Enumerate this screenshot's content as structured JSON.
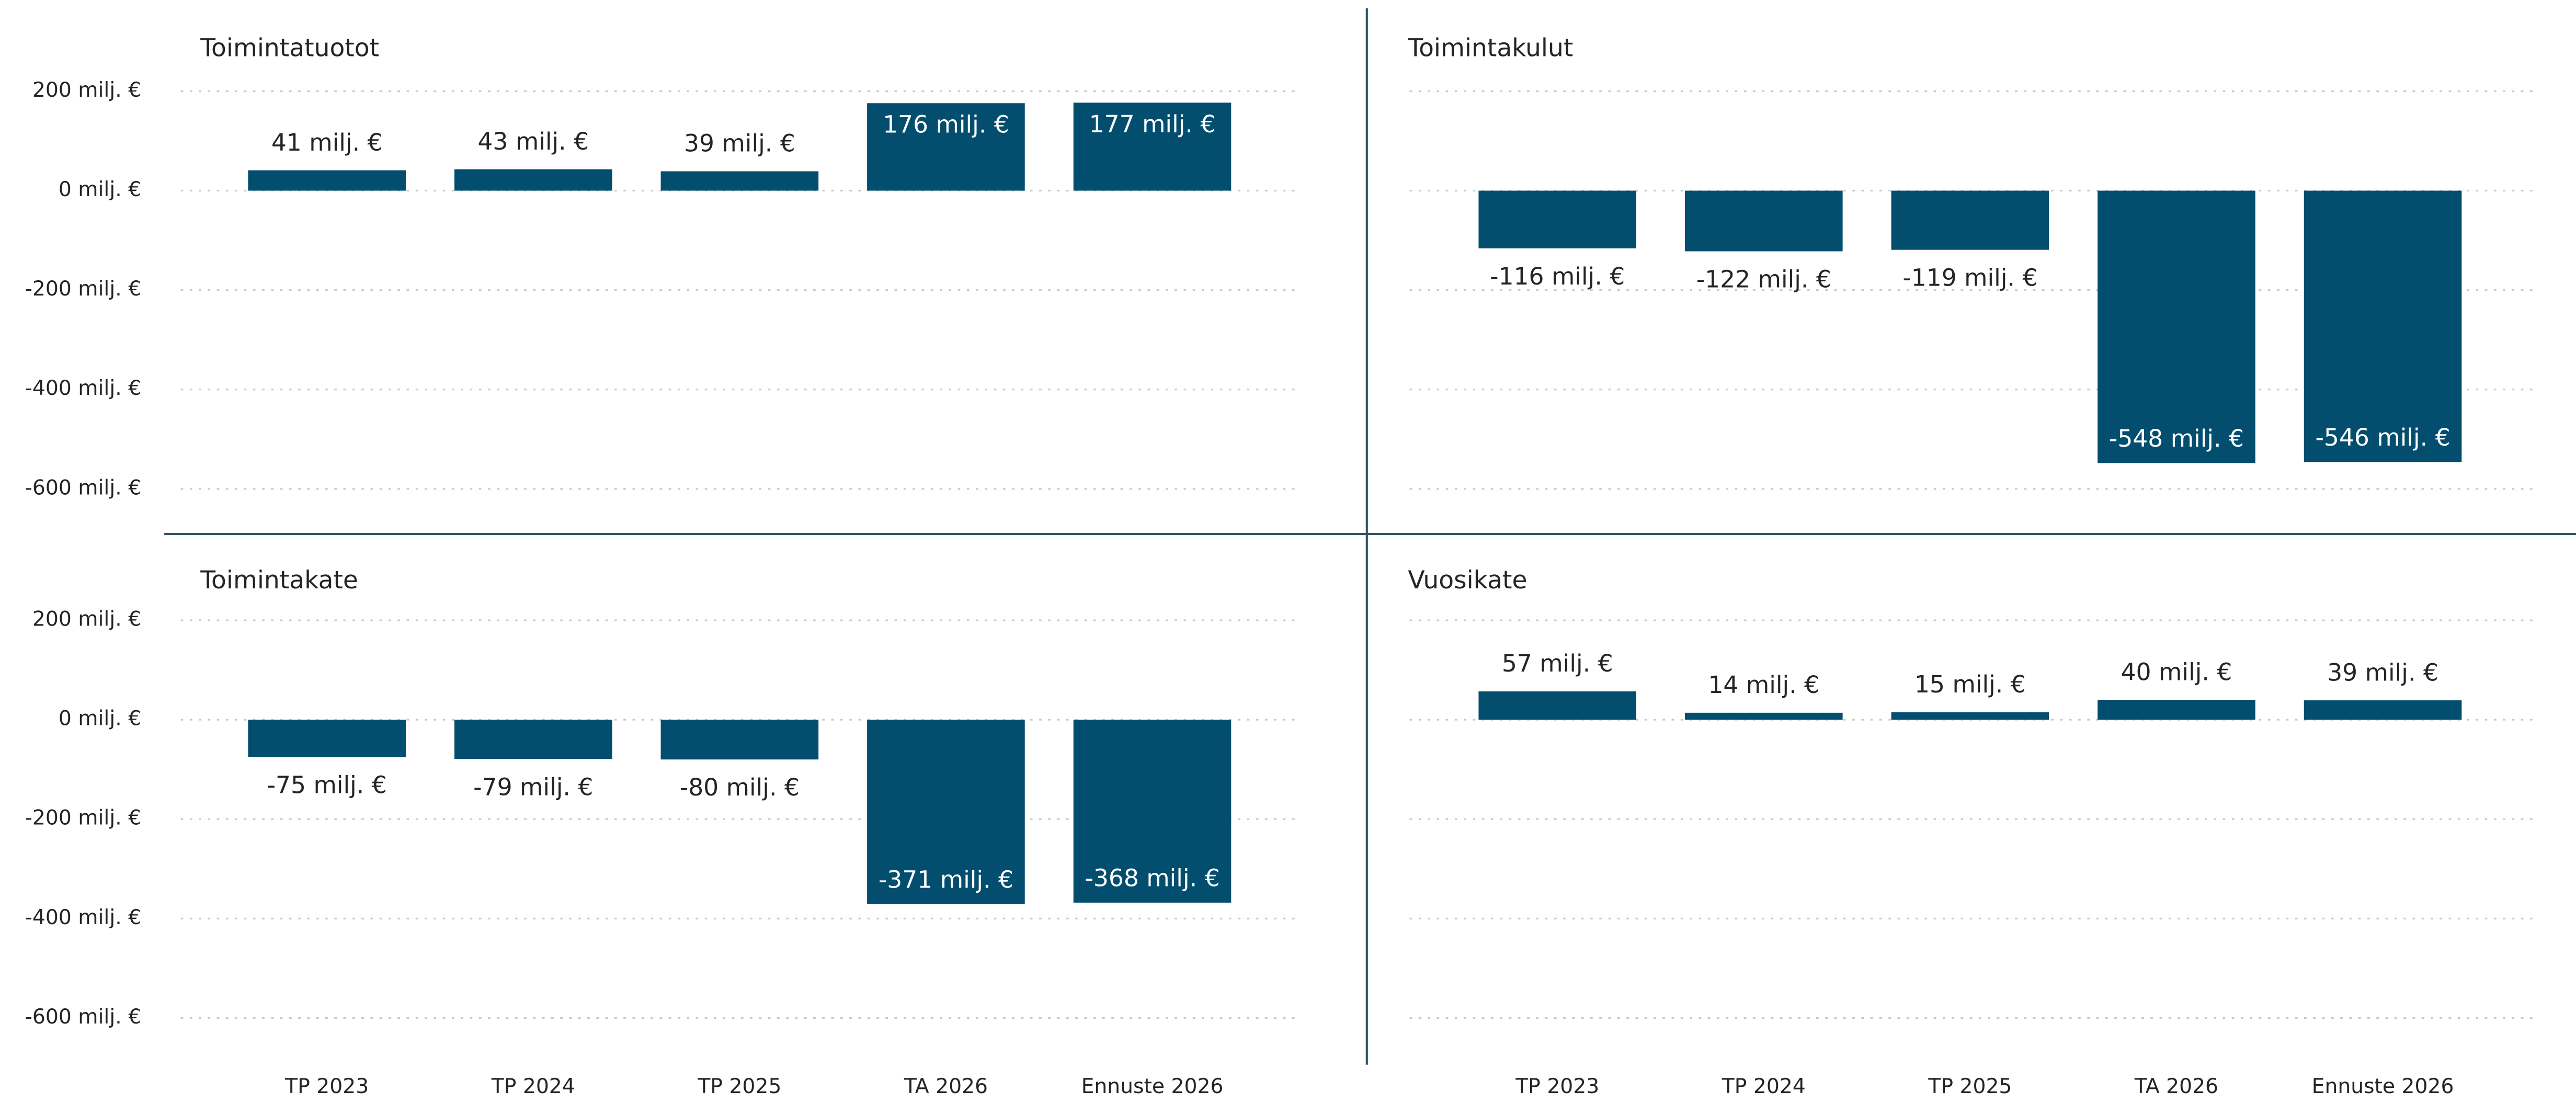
{
  "chart_data": [
    {
      "type": "bar",
      "title": "Toimintatuotot",
      "color": "#034e6e",
      "values": [
        41,
        43,
        39,
        176,
        177
      ],
      "value_labels": [
        "41 milj. €",
        "43 milj. €",
        "39 milj. €",
        "176 milj. €",
        "177 milj. €"
      ],
      "ylim": [
        -660,
        250
      ],
      "yticks": [
        {
          "value": 200,
          "label": "200 milj. €"
        },
        {
          "value": 0,
          "label": "0 milj. €"
        },
        {
          "value": -200,
          "label": "-200 milj. €"
        },
        {
          "value": -400,
          "label": "-400 milj. €"
        },
        {
          "value": -600,
          "label": "-600 milj. €"
        }
      ],
      "grid": true
    },
    {
      "type": "bar",
      "title": "Toimintakulut",
      "color": "#034e6e",
      "values": [
        -116,
        -122,
        -119,
        -548,
        -546
      ],
      "value_labels": [
        "-116 milj. €",
        "-122 milj. €",
        "-119 milj. €",
        "-548 milj. €",
        "-546 milj. €"
      ],
      "ylim": [
        -660,
        250
      ],
      "yticks": [
        200,
        0,
        -200,
        -400,
        -600
      ],
      "grid": true
    },
    {
      "type": "bar",
      "title": "Toimintakate",
      "color": "#034e6e",
      "categories": [
        "TP 2023",
        "TP 2024",
        "TP 2025",
        "TA 2026",
        "Ennuste 2026"
      ],
      "values": [
        -75,
        -79,
        -80,
        -371,
        -368
      ],
      "value_labels": [
        "-75 milj. €",
        "-79 milj. €",
        "-80 milj. €",
        "-371 milj. €",
        "-368 milj. €"
      ],
      "ylim": [
        -660,
        250
      ],
      "yticks": [
        {
          "value": 200,
          "label": "200 milj. €"
        },
        {
          "value": 0,
          "label": "0 milj. €"
        },
        {
          "value": -200,
          "label": "-200 milj. €"
        },
        {
          "value": -400,
          "label": "-400 milj. €"
        },
        {
          "value": -600,
          "label": "-600 milj. €"
        }
      ],
      "grid": true
    },
    {
      "type": "bar",
      "title": "Vuosikate",
      "color": "#034e6e",
      "categories": [
        "TP 2023",
        "TP 2024",
        "TP 2025",
        "TA 2026",
        "Ennuste 2026"
      ],
      "values": [
        57,
        14,
        15,
        40,
        39
      ],
      "value_labels": [
        "57 milj. €",
        "14 milj. €",
        "15 milj. €",
        "40 milj. €",
        "39 milj. €"
      ],
      "ylim": [
        -660,
        250
      ],
      "yticks": [
        200,
        0,
        -200,
        -400,
        -600
      ],
      "grid": true
    }
  ]
}
